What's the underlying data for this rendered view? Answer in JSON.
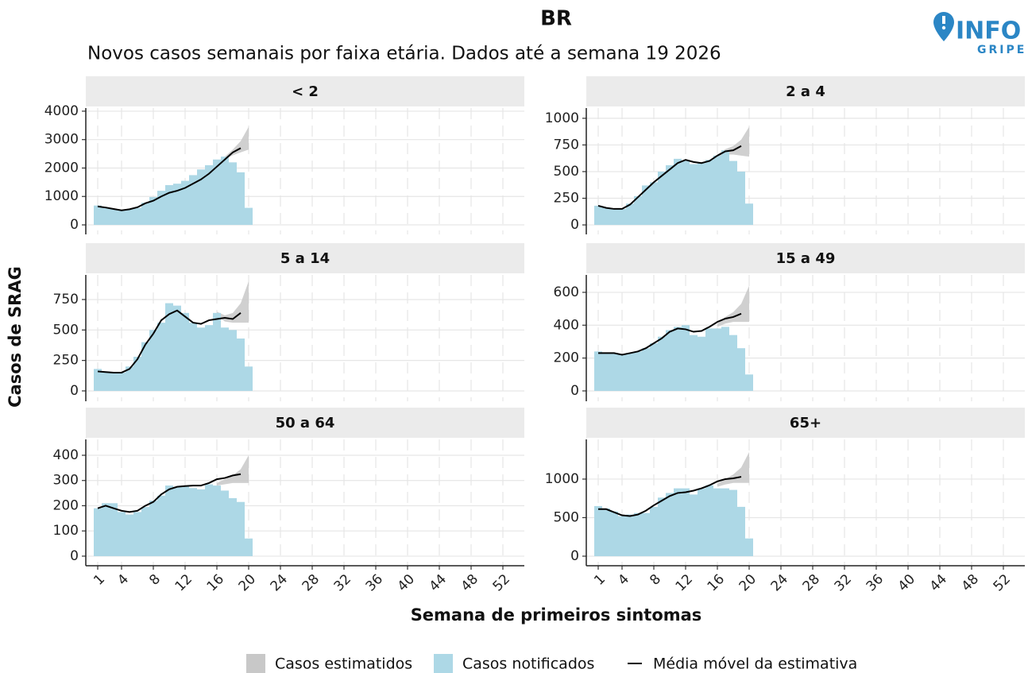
{
  "title": "BR",
  "subtitle": "Novos casos semanais por faixa etária. Dados até a semana 19 2026",
  "logo": {
    "main": "INFO",
    "sub": "GRIPE"
  },
  "ylabel": "Casos de SRAG",
  "xlabel": "Semana de primeiros sintomas",
  "chart_data": [
    {
      "type": "bar",
      "title": "< 2",
      "x": [
        1,
        2,
        3,
        4,
        5,
        6,
        7,
        8,
        9,
        10,
        11,
        12,
        13,
        14,
        15,
        16,
        17,
        18,
        19,
        20
      ],
      "xlim": [
        -0.5,
        54.7
      ],
      "xticks": [
        1,
        4,
        8,
        12,
        16,
        20,
        24,
        28,
        32,
        36,
        40,
        44,
        48,
        52
      ],
      "ylim": [
        -335,
        4110
      ],
      "yticks": [
        0,
        1000,
        2000,
        3000,
        4000
      ],
      "grid": true,
      "series": [
        {
          "name": "Casos notificados",
          "color": "#add8e6",
          "values": [
            680,
            620,
            560,
            500,
            550,
            600,
            780,
            980,
            1200,
            1400,
            1450,
            1550,
            1750,
            1950,
            2100,
            2300,
            2400,
            2200,
            1850,
            600
          ]
        },
        {
          "name": "Média móvel da estimativa",
          "color": "#000000",
          "values": [
            650,
            610,
            560,
            510,
            550,
            620,
            760,
            850,
            1000,
            1130,
            1200,
            1300,
            1450,
            1600,
            1800,
            2050,
            2300,
            2550,
            2700,
            null
          ]
        },
        {
          "name": "Casos estimatidos",
          "color": "#c8c8c8",
          "low": [
            null,
            null,
            null,
            null,
            null,
            null,
            null,
            null,
            null,
            null,
            null,
            null,
            null,
            null,
            null,
            2100,
            2300,
            2450,
            2550,
            2650
          ],
          "high": [
            null,
            null,
            null,
            null,
            null,
            null,
            null,
            null,
            null,
            null,
            null,
            null,
            null,
            null,
            null,
            2150,
            2400,
            2650,
            2950,
            3450
          ]
        }
      ]
    },
    {
      "type": "bar",
      "title": "2 a 4",
      "x": [
        1,
        2,
        3,
        4,
        5,
        6,
        7,
        8,
        9,
        10,
        11,
        12,
        13,
        14,
        15,
        16,
        17,
        18,
        19,
        20
      ],
      "xlim": [
        -0.5,
        54.7
      ],
      "xticks": [
        1,
        4,
        8,
        12,
        16,
        20,
        24,
        28,
        32,
        36,
        40,
        44,
        48,
        52
      ],
      "ylim": [
        -89,
        1096
      ],
      "yticks": [
        0,
        250,
        500,
        750,
        1000
      ],
      "grid": true,
      "series": [
        {
          "name": "Casos notificados",
          "color": "#add8e6",
          "values": [
            180,
            165,
            150,
            150,
            200,
            270,
            370,
            400,
            500,
            560,
            620,
            600,
            570,
            580,
            610,
            650,
            700,
            600,
            500,
            200
          ]
        },
        {
          "name": "Média móvel da estimativa",
          "color": "#000000",
          "values": [
            180,
            160,
            150,
            150,
            190,
            260,
            330,
            400,
            460,
            520,
            580,
            610,
            590,
            580,
            600,
            650,
            690,
            700,
            740,
            null
          ]
        },
        {
          "name": "Casos estimatidos",
          "color": "#c8c8c8",
          "low": [
            null,
            null,
            null,
            null,
            null,
            null,
            null,
            null,
            null,
            null,
            null,
            null,
            null,
            null,
            null,
            640,
            660,
            660,
            650,
            640
          ],
          "high": [
            null,
            null,
            null,
            null,
            null,
            null,
            null,
            null,
            null,
            null,
            null,
            null,
            null,
            null,
            null,
            660,
            710,
            740,
            800,
            920
          ]
        }
      ]
    },
    {
      "type": "bar",
      "title": "5 a 14",
      "x": [
        1,
        2,
        3,
        4,
        5,
        6,
        7,
        8,
        9,
        10,
        11,
        12,
        13,
        14,
        15,
        16,
        17,
        18,
        19,
        20
      ],
      "xlim": [
        -0.5,
        54.7
      ],
      "xticks": [
        1,
        4,
        8,
        12,
        16,
        20,
        24,
        28,
        32,
        36,
        40,
        44,
        48,
        52
      ],
      "ylim": [
        -85,
        952
      ],
      "yticks": [
        0,
        250,
        500,
        750
      ],
      "grid": true,
      "series": [
        {
          "name": "Casos notificados",
          "color": "#add8e6",
          "values": [
            180,
            160,
            150,
            150,
            200,
            280,
            400,
            500,
            560,
            720,
            700,
            640,
            560,
            520,
            540,
            640,
            520,
            500,
            430,
            200
          ]
        },
        {
          "name": "Média móvel da estimativa",
          "color": "#000000",
          "values": [
            160,
            155,
            150,
            150,
            180,
            260,
            380,
            470,
            580,
            630,
            660,
            610,
            560,
            550,
            580,
            590,
            600,
            590,
            640,
            null
          ]
        },
        {
          "name": "Casos estimatidos",
          "color": "#c8c8c8",
          "low": [
            null,
            null,
            null,
            null,
            null,
            null,
            null,
            null,
            null,
            null,
            null,
            null,
            null,
            null,
            null,
            620,
            570,
            560,
            560,
            560
          ],
          "high": [
            null,
            null,
            null,
            null,
            null,
            null,
            null,
            null,
            null,
            null,
            null,
            null,
            null,
            null,
            null,
            650,
            620,
            640,
            720,
            900
          ]
        }
      ]
    },
    {
      "type": "bar",
      "title": "15 a 49",
      "x": [
        1,
        2,
        3,
        4,
        5,
        6,
        7,
        8,
        9,
        10,
        11,
        12,
        13,
        14,
        15,
        16,
        17,
        18,
        19,
        20
      ],
      "xlim": [
        -0.5,
        54.7
      ],
      "xticks": [
        1,
        4,
        8,
        12,
        16,
        20,
        24,
        28,
        32,
        36,
        40,
        44,
        48,
        52
      ],
      "ylim": [
        -63,
        706
      ],
      "yticks": [
        0,
        200,
        400,
        600
      ],
      "grid": true,
      "series": [
        {
          "name": "Casos notificados",
          "color": "#add8e6",
          "values": [
            240,
            230,
            230,
            220,
            230,
            240,
            260,
            290,
            330,
            370,
            390,
            400,
            340,
            330,
            380,
            380,
            390,
            340,
            260,
            100
          ]
        },
        {
          "name": "Média móvel da estimativa",
          "color": "#000000",
          "values": [
            230,
            230,
            230,
            220,
            230,
            240,
            260,
            290,
            320,
            360,
            380,
            375,
            360,
            365,
            390,
            420,
            440,
            450,
            470,
            null
          ]
        },
        {
          "name": "Casos estimatidos",
          "color": "#c8c8c8",
          "low": [
            null,
            null,
            null,
            null,
            null,
            null,
            null,
            null,
            null,
            null,
            null,
            null,
            null,
            null,
            null,
            390,
            410,
            420,
            420,
            420
          ],
          "high": [
            null,
            null,
            null,
            null,
            null,
            null,
            null,
            null,
            null,
            null,
            null,
            null,
            null,
            null,
            null,
            410,
            450,
            480,
            530,
            640
          ]
        }
      ]
    },
    {
      "type": "bar",
      "title": "50 a 64",
      "x": [
        1,
        2,
        3,
        4,
        5,
        6,
        7,
        8,
        9,
        10,
        11,
        12,
        13,
        14,
        15,
        16,
        17,
        18,
        19,
        20
      ],
      "xlim": [
        -0.5,
        54.7
      ],
      "xticks": [
        1,
        4,
        8,
        12,
        16,
        20,
        24,
        28,
        32,
        36,
        40,
        44,
        48,
        52
      ],
      "ylim": [
        -38,
        463
      ],
      "yticks": [
        0,
        100,
        200,
        300,
        400
      ],
      "grid": true,
      "series": [
        {
          "name": "Casos notificados",
          "color": "#add8e6",
          "values": [
            190,
            210,
            210,
            175,
            165,
            175,
            195,
            220,
            240,
            280,
            275,
            280,
            270,
            265,
            285,
            280,
            260,
            230,
            215,
            70
          ]
        },
        {
          "name": "Média móvel da estimativa",
          "color": "#000000",
          "values": [
            190,
            200,
            190,
            180,
            175,
            180,
            200,
            215,
            245,
            265,
            275,
            278,
            280,
            280,
            290,
            305,
            310,
            320,
            325,
            null
          ]
        },
        {
          "name": "Casos estimatidos",
          "color": "#c8c8c8",
          "low": [
            null,
            null,
            null,
            null,
            null,
            null,
            null,
            null,
            null,
            null,
            null,
            null,
            null,
            null,
            null,
            280,
            285,
            290,
            290,
            290
          ],
          "high": [
            null,
            null,
            null,
            null,
            null,
            null,
            null,
            null,
            null,
            null,
            null,
            null,
            null,
            null,
            null,
            290,
            305,
            320,
            345,
            400
          ]
        }
      ]
    },
    {
      "type": "bar",
      "title": "65+",
      "x": [
        1,
        2,
        3,
        4,
        5,
        6,
        7,
        8,
        9,
        10,
        11,
        12,
        13,
        14,
        15,
        16,
        17,
        18,
        19,
        20
      ],
      "xlim": [
        -0.5,
        54.7
      ],
      "xticks": [
        1,
        4,
        8,
        12,
        16,
        20,
        24,
        28,
        32,
        36,
        40,
        44,
        48,
        52
      ],
      "ylim": [
        -124,
        1515
      ],
      "yticks": [
        0,
        500,
        1000
      ],
      "grid": true,
      "series": [
        {
          "name": "Casos notificados",
          "color": "#add8e6",
          "values": [
            650,
            620,
            580,
            520,
            540,
            560,
            560,
            640,
            760,
            820,
            880,
            880,
            800,
            880,
            920,
            880,
            880,
            860,
            640,
            230
          ]
        },
        {
          "name": "Média móvel da estimativa",
          "color": "#000000",
          "values": [
            610,
            610,
            570,
            530,
            520,
            540,
            590,
            660,
            720,
            780,
            820,
            830,
            850,
            880,
            920,
            970,
            1000,
            1010,
            1030,
            null
          ]
        },
        {
          "name": "Casos estimatidos",
          "color": "#c8c8c8",
          "low": [
            null,
            null,
            null,
            null,
            null,
            null,
            null,
            null,
            null,
            null,
            null,
            null,
            null,
            null,
            null,
            900,
            930,
            950,
            950,
            950
          ],
          "high": [
            null,
            null,
            null,
            null,
            null,
            null,
            null,
            null,
            null,
            null,
            null,
            null,
            null,
            null,
            null,
            940,
            1000,
            1060,
            1150,
            1350
          ]
        }
      ]
    }
  ]
}
